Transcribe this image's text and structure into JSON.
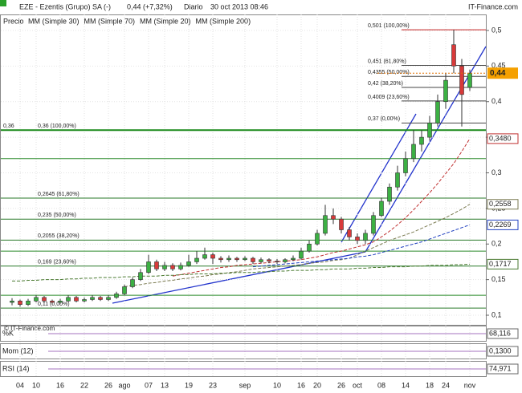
{
  "header": {
    "title": "EZE - Ezentis (Grupo) SA (-)",
    "change": "0,44 (+7,32%)",
    "period": "Diario",
    "datetime": "30 oct 2013 08:46",
    "site": "IT-Finance.com"
  },
  "chart_data": {
    "type": "candlestick",
    "price_label": "Precio",
    "watermark": "© IT-Finance.com",
    "categories": [
      null,
      "04",
      null,
      "10",
      null,
      null,
      "16",
      null,
      null,
      "22",
      null,
      null,
      "26",
      null,
      "ago",
      null,
      null,
      "07",
      null,
      "13",
      null,
      null,
      "19",
      null,
      null,
      "23",
      null,
      null,
      null,
      "sep",
      null,
      null,
      null,
      "10",
      null,
      null,
      "16",
      null,
      "20",
      null,
      null,
      "26",
      null,
      "oct",
      null,
      null,
      "08",
      null,
      null,
      "14",
      null,
      null,
      "18",
      null,
      "24",
      null,
      null,
      "nov"
    ],
    "open": [
      0.118,
      0.12,
      0.115,
      0.12,
      0.125,
      0.12,
      0.118,
      0.12,
      0.125,
      0.12,
      0.122,
      0.125,
      0.122,
      0.125,
      0.13,
      0.14,
      0.15,
      0.16,
      0.175,
      0.165,
      0.17,
      0.165,
      0.17,
      0.175,
      0.18,
      0.185,
      0.18,
      0.178,
      0.18,
      0.178,
      0.18,
      0.175,
      0.178,
      0.176,
      0.175,
      0.178,
      0.18,
      0.19,
      0.2,
      0.215,
      0.24,
      0.235,
      0.22,
      0.21,
      0.205,
      0.215,
      0.24,
      0.26,
      0.28,
      0.3,
      0.32,
      0.34,
      0.35,
      0.37,
      0.4,
      0.48,
      0.45,
      0.42
    ],
    "high": [
      0.124,
      0.122,
      0.123,
      0.128,
      0.127,
      0.122,
      0.123,
      0.128,
      0.127,
      0.125,
      0.128,
      0.127,
      0.128,
      0.133,
      0.143,
      0.153,
      0.165,
      0.185,
      0.178,
      0.175,
      0.173,
      0.174,
      0.185,
      0.19,
      0.195,
      0.188,
      0.183,
      0.184,
      0.182,
      0.183,
      0.182,
      0.181,
      0.18,
      0.179,
      0.18,
      0.184,
      0.195,
      0.205,
      0.22,
      0.255,
      0.25,
      0.238,
      0.224,
      0.215,
      0.22,
      0.245,
      0.265,
      0.285,
      0.31,
      0.33,
      0.36,
      0.36,
      0.38,
      0.41,
      0.44,
      0.501,
      0.46,
      0.445
    ],
    "low": [
      0.114,
      0.112,
      0.113,
      0.118,
      0.117,
      0.115,
      0.116,
      0.118,
      0.118,
      0.118,
      0.12,
      0.12,
      0.12,
      0.123,
      0.128,
      0.138,
      0.148,
      0.158,
      0.162,
      0.162,
      0.162,
      0.163,
      0.168,
      0.172,
      0.178,
      0.172,
      0.174,
      0.175,
      0.175,
      0.176,
      0.172,
      0.173,
      0.173,
      0.172,
      0.173,
      0.176,
      0.178,
      0.188,
      0.198,
      0.212,
      0.228,
      0.215,
      0.205,
      0.2,
      0.2,
      0.212,
      0.238,
      0.255,
      0.275,
      0.295,
      0.315,
      0.33,
      0.345,
      0.365,
      0.39,
      0.44,
      0.365,
      0.415
    ],
    "close": [
      0.12,
      0.115,
      0.12,
      0.125,
      0.12,
      0.118,
      0.12,
      0.125,
      0.12,
      0.122,
      0.125,
      0.122,
      0.125,
      0.13,
      0.14,
      0.15,
      0.16,
      0.175,
      0.165,
      0.17,
      0.165,
      0.17,
      0.175,
      0.18,
      0.185,
      0.18,
      0.178,
      0.18,
      0.178,
      0.18,
      0.175,
      0.178,
      0.176,
      0.175,
      0.178,
      0.18,
      0.19,
      0.2,
      0.215,
      0.24,
      0.235,
      0.22,
      0.21,
      0.205,
      0.215,
      0.24,
      0.26,
      0.28,
      0.3,
      0.32,
      0.34,
      0.35,
      0.37,
      0.4,
      0.43,
      0.45,
      0.41,
      0.44
    ],
    "up_color": "#3cb043",
    "down_color": "#d83a3a",
    "last_price": {
      "value": 0.44,
      "label": "0,44"
    },
    "series": [
      {
        "name": "MM (Simple 30)",
        "color": "#7a7a50",
        "end_label": {
          "value": 0.2558,
          "label": "0,2558"
        },
        "values": [
          null,
          null,
          null,
          null,
          null,
          null,
          null,
          null,
          null,
          null,
          null,
          null,
          null,
          null,
          0.14,
          0.142,
          0.143,
          0.145,
          0.146,
          0.148,
          0.149,
          0.151,
          0.152,
          0.154,
          0.155,
          0.157,
          0.158,
          0.16,
          0.161,
          0.163,
          0.165,
          0.166,
          0.167,
          0.168,
          0.169,
          0.17,
          0.171,
          0.173,
          0.174,
          0.175,
          0.177,
          0.178,
          0.18,
          0.185,
          0.19,
          0.195,
          0.2,
          0.205,
          0.209,
          0.213,
          0.217,
          0.222,
          0.227,
          0.232,
          0.237,
          0.243,
          0.249,
          0.2558
        ]
      },
      {
        "name": "MM (Simple 70)",
        "color": "#2040c0",
        "end_label": {
          "value": 0.2269,
          "label": "0,2269"
        },
        "values": [
          null,
          null,
          null,
          null,
          null,
          null,
          null,
          null,
          null,
          null,
          null,
          null,
          null,
          null,
          null,
          null,
          null,
          null,
          null,
          null,
          null,
          null,
          null,
          null,
          null,
          null,
          null,
          null,
          null,
          null,
          0.168,
          0.169,
          0.17,
          0.171,
          0.172,
          0.173,
          0.174,
          0.175,
          0.176,
          0.177,
          0.178,
          0.179,
          0.18,
          0.182,
          0.183,
          0.185,
          0.188,
          0.191,
          0.194,
          0.197,
          0.2,
          0.203,
          0.207,
          0.211,
          0.215,
          0.219,
          0.223,
          0.2269
        ]
      },
      {
        "name": "MM (Simple 20)",
        "color": "#c03030",
        "end_label": {
          "value": 0.348,
          "label": "0,3480"
        },
        "values": [
          null,
          null,
          null,
          null,
          null,
          null,
          null,
          null,
          null,
          null,
          null,
          null,
          null,
          null,
          null,
          null,
          null,
          null,
          null,
          null,
          0.155,
          0.157,
          0.159,
          0.161,
          0.163,
          0.165,
          0.167,
          0.168,
          0.17,
          0.171,
          0.172,
          0.173,
          0.174,
          0.175,
          0.176,
          0.177,
          0.178,
          0.18,
          0.182,
          0.185,
          0.188,
          0.19,
          0.193,
          0.196,
          0.199,
          0.203,
          0.21,
          0.218,
          0.227,
          0.237,
          0.248,
          0.26,
          0.272,
          0.285,
          0.299,
          0.313,
          0.33,
          0.348
        ]
      },
      {
        "name": "MM (Simple 200)",
        "color": "#4a7a30",
        "end_label": {
          "value": 0.1717,
          "label": "0,1717"
        },
        "values": [
          0.148,
          0.148,
          0.149,
          0.149,
          0.15,
          0.15,
          0.15,
          0.151,
          0.151,
          0.152,
          0.152,
          0.153,
          0.153,
          0.153,
          0.154,
          0.154,
          0.155,
          0.155,
          0.155,
          0.156,
          0.156,
          0.157,
          0.157,
          0.158,
          0.158,
          0.158,
          0.159,
          0.159,
          0.16,
          0.16,
          0.16,
          0.161,
          0.161,
          0.162,
          0.162,
          0.163,
          0.163,
          0.163,
          0.164,
          0.164,
          0.165,
          0.165,
          0.165,
          0.166,
          0.166,
          0.167,
          0.167,
          0.168,
          0.168,
          0.168,
          0.169,
          0.169,
          0.17,
          0.17,
          0.17,
          0.171,
          0.171,
          0.1717
        ]
      }
    ],
    "fib_upper": [
      {
        "value": 0.501,
        "label": "0,501 (100,00%)"
      },
      {
        "value": 0.451,
        "label": "0,451 (61,80%)"
      },
      {
        "value": 0.4355,
        "label": "0,4355 (50,00%)"
      },
      {
        "value": 0.42,
        "label": "0,42 (38,20%)"
      },
      {
        "value": 0.4009,
        "label": "0,4009 (23,60%)"
      },
      {
        "value": 0.37,
        "label": "0,37 (0,00%)"
      }
    ],
    "fib_lower": [
      {
        "value": 0.36,
        "label": "0,36 (100,00%)"
      },
      {
        "value": 0.2645,
        "label": "0,2645 (61,80%)"
      },
      {
        "value": 0.235,
        "label": "0,235 (50,00%)"
      },
      {
        "value": 0.2055,
        "label": "0,2055 (38,20%)"
      },
      {
        "value": 0.169,
        "label": "0,169 (23,60%)"
      },
      {
        "value": 0.11,
        "label": "0,11 (0,00%)"
      }
    ],
    "fib_anchor": {
      "value": 0.36,
      "label": "0,36"
    },
    "hlines": [
      0.32,
      0.19,
      0.128
    ],
    "ylim": [
      0.0865,
      0.5225
    ],
    "yticks": [
      {
        "value": 0.5,
        "label": "0,5"
      },
      {
        "value": 0.45,
        "label": "0,45"
      },
      {
        "value": 0.4,
        "label": "0,4"
      },
      {
        "value": 0.35,
        "label": "0,35"
      },
      {
        "value": 0.3,
        "label": "0,3"
      },
      {
        "value": 0.25,
        "label": "0,25"
      },
      {
        "value": 0.2,
        "label": "0,2"
      },
      {
        "value": 0.15,
        "label": "0,15"
      },
      {
        "value": 0.1,
        "label": "0,1"
      }
    ],
    "grid": true
  },
  "indicators": [
    {
      "name": "%K",
      "value": "68,116"
    },
    {
      "name": "Mom (12)",
      "value": "0,1300"
    },
    {
      "name": "RSI (14)",
      "value": "74,971"
    }
  ]
}
